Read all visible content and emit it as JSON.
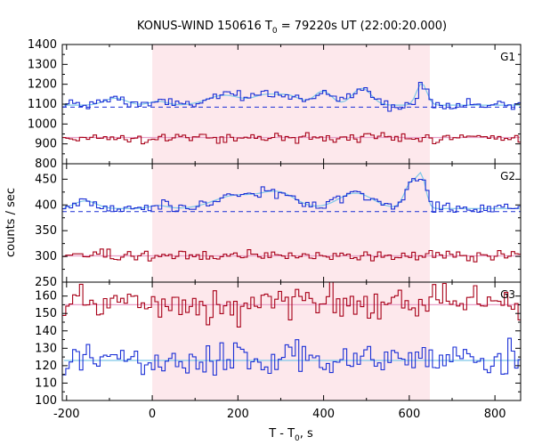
{
  "figure": {
    "title_prefix": "KONUS-WIND 150616 T",
    "title_sub": "0",
    "title_suffix": " = 79220s UT (22:00:20.000)",
    "xlabel_prefix": "T - T",
    "xlabel_sub": "0",
    "xlabel_suffix": ", s",
    "ylabel": "counts / sec"
  },
  "colors": {
    "upper_curve": "#1a2fd6",
    "upper_fit": "#7ec8e8",
    "lower_curve": "#a80018",
    "lower_fit": "#e8a0c8",
    "background_dash": "#1a2fd6",
    "highlight_region": "#fde8ec",
    "frame": "#000000"
  },
  "chart_data": {
    "type": "line",
    "step_style": true,
    "highlight_interval": [
      0,
      648
    ],
    "xlim": [
      -210,
      860
    ],
    "xticks": [
      -200,
      0,
      200,
      400,
      600,
      800
    ],
    "xtick_labels": [
      "-200",
      "0",
      "200",
      "400",
      "600",
      "800"
    ],
    "bin_width_s": 8,
    "panels": [
      {
        "label": "G1",
        "ylim": [
          800,
          1400
        ],
        "yticks": [
          800,
          900,
          1000,
          1100,
          1200,
          1300,
          1400
        ],
        "ytick_labels": [
          "800",
          "900",
          "1000",
          "1100",
          "1200",
          "1300",
          "1400"
        ],
        "background_level": 1085,
        "upper_series": {
          "base": 1095,
          "noise": 14,
          "bumps": [
            [
              -90,
              35,
              25
            ],
            [
              10,
              20,
              20
            ],
            [
              165,
              50,
              40
            ],
            [
              255,
              40,
              25
            ],
            [
              310,
              50,
              30
            ],
            [
              395,
              70,
              20
            ],
            [
              485,
              85,
              22
            ],
            [
              625,
              110,
              12
            ]
          ]
        },
        "lower_series": {
          "base": 932,
          "noise": 12
        }
      },
      {
        "label": "G2",
        "ylim": [
          250,
          480
        ],
        "yticks": [
          250,
          300,
          350,
          400,
          450
        ],
        "ytick_labels": [
          "250",
          "300",
          "350",
          "400",
          "450"
        ],
        "background_level": 387,
        "upper_series": {
          "base": 393,
          "noise": 6,
          "bumps": [
            [
              -160,
              15,
              25
            ],
            [
              10,
              6,
              20
            ],
            [
              190,
              25,
              50
            ],
            [
              290,
              30,
              40
            ],
            [
              470,
              30,
              40
            ],
            [
              600,
              50,
              15
            ],
            [
              625,
              55,
              10
            ]
          ]
        },
        "lower_series": {
          "base": 301,
          "noise": 5
        }
      },
      {
        "label": "G3",
        "ylim": [
          100,
          168
        ],
        "yticks": [
          100,
          110,
          120,
          130,
          140,
          150,
          160
        ],
        "ytick_labels": [
          "100",
          "110",
          "120",
          "130",
          "140",
          "150",
          "160"
        ],
        "background_level": null,
        "upper_series": {
          "base": 155,
          "noise": 4.5,
          "bumps": []
        },
        "lower_series": {
          "base": 123,
          "noise": 4.5,
          "bumps": []
        }
      }
    ]
  }
}
